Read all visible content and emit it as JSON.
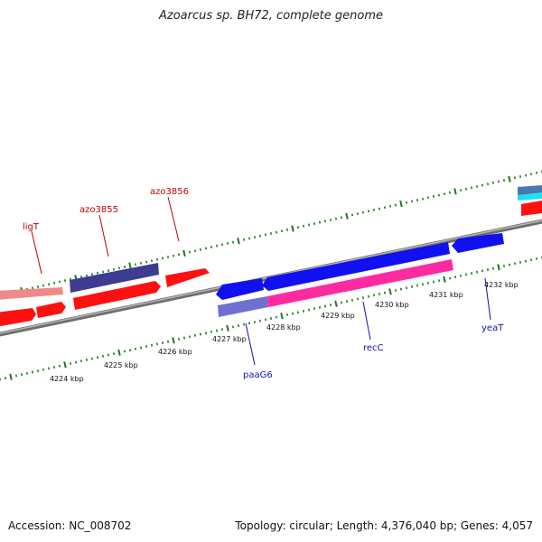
{
  "title": "Azoarcus sp. BH72, complete genome",
  "footer": {
    "accession": "Accession: NC_008702",
    "summary": "Topology: circular; Length: 4,376,040 bp; Genes: 4,057"
  },
  "colors": {
    "tick": "#1d7a1d",
    "backbone": "#8a8a8a",
    "label_red": "#c00000",
    "label_blue": "#1010b0",
    "gene_red": "#ff1010",
    "gene_blue": "#1010f0",
    "gene_pink": "#ff2aa0",
    "gene_navy": "#3c3c90",
    "gene_salmon": "#f08a8a",
    "gene_lavender": "#7070d0",
    "gene_cyan": "#20e0f0",
    "gene_steel": "#4a78b0"
  },
  "scale_labels": [
    "4224 kbp",
    "4225 kbp",
    "4226 kbp",
    "4227 kbp",
    "4228 kbp",
    "4229 kbp",
    "4230 kbp",
    "4231 kbp",
    "4232 kbp"
  ],
  "gene_labels": {
    "ligT": "ligT",
    "azo3855": "azo3855",
    "azo3856": "azo3856",
    "paaG6": "paaG6",
    "recC": "recC",
    "yeaT": "yeaT"
  }
}
